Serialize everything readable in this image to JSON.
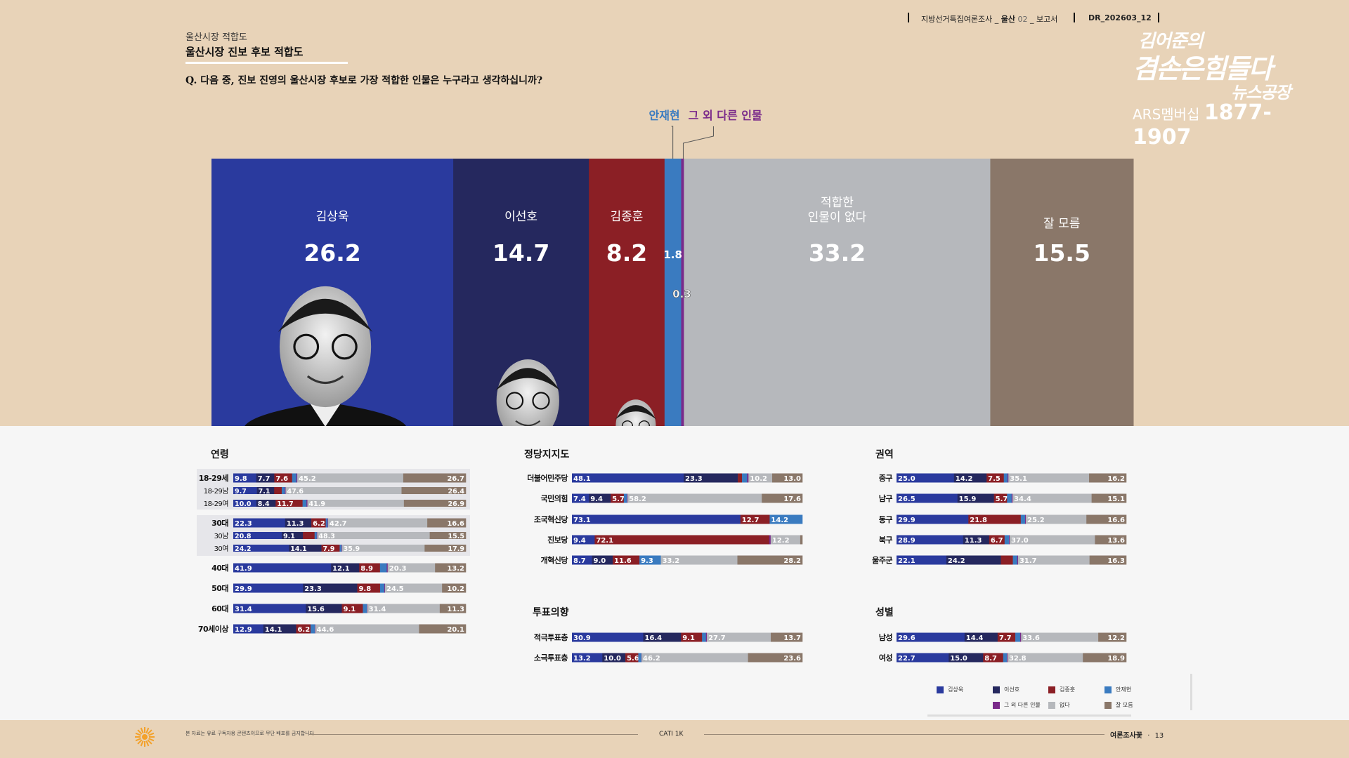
{
  "header": {
    "doc_title": "지방선거특집여론조사",
    "region": "울산",
    "issue_no": "02",
    "doc_type": "보고서",
    "doc_code": "DR_202603_12"
  },
  "brand": {
    "line1": "김어준의",
    "line2": "겸손은힘들다",
    "line3": "뉴스공장",
    "membership_label": "ARS멤버십",
    "membership_number": "1877-1907"
  },
  "section": {
    "subtitle": "울산시장 적합도",
    "title": "울산시장 진보 후보 적합도",
    "question": "Q. 다음 중, 진보 진영의 울산시장 후보로 가장 적합한 인물은 누구라고 생각하십니까?"
  },
  "callouts": {
    "ahn": "안재현",
    "other": "그 외 다른 인물"
  },
  "colors": {
    "kim_sangwook": "#2a3a9e",
    "lee_seonho": "#25285e",
    "kim_jonghoon": "#8b1f25",
    "ahn_jaehyun": "#3a7bc0",
    "other_person": "#7a2a8a",
    "none": "#b6b8bc",
    "dont_know": "#8a7769"
  },
  "chart_data": [
    {
      "type": "bar",
      "stacked": true,
      "orientation": "horizontal",
      "series": [
        {
          "key": "kim_sangwook",
          "name": "김상욱",
          "values": [
            26.2
          ]
        },
        {
          "key": "lee_seonho",
          "name": "이선호",
          "values": [
            14.7
          ]
        },
        {
          "key": "kim_jonghoon",
          "name": "김종훈",
          "values": [
            8.2
          ]
        },
        {
          "key": "ahn_jaehyun",
          "name": "안재현",
          "values": [
            1.8
          ]
        },
        {
          "key": "other_person",
          "name": "그 외 다른 인물",
          "values": [
            0.3
          ]
        },
        {
          "key": "none",
          "name": "적합한 인물이 없다",
          "values": [
            33.2
          ]
        },
        {
          "key": "dont_know",
          "name": "잘 모름",
          "values": [
            15.5
          ]
        }
      ]
    },
    {
      "type": "bar",
      "stacked": true,
      "title": "연령",
      "series_order": [
        "kim_sangwook",
        "lee_seonho",
        "kim_jonghoon",
        "ahn_jaehyun",
        "other_person",
        "none",
        "dont_know"
      ],
      "rows": [
        {
          "label": "18-29세",
          "values": [
            9.8,
            7.7,
            7.6,
            1.8,
            0.4,
            45.2,
            26.7
          ]
        },
        {
          "label": "18-29남",
          "values": [
            9.7,
            7.1,
            3.1,
            1.3,
            0.3,
            47.6,
            26.4
          ]
        },
        {
          "label": "18-29여",
          "values": [
            10.0,
            8.4,
            11.7,
            1.7,
            0.4,
            41.9,
            26.9
          ]
        },
        {
          "label": "30대",
          "values": [
            22.3,
            11.3,
            6.2,
            0.8,
            0.2,
            42.7,
            16.6
          ]
        },
        {
          "label": "30남",
          "values": [
            20.8,
            9.1,
            5.0,
            0.9,
            0.2,
            48.3,
            15.5
          ]
        },
        {
          "label": "30여",
          "values": [
            24.2,
            14.1,
            7.9,
            0.8,
            0.2,
            35.9,
            17.9
          ]
        },
        {
          "label": "40대",
          "values": [
            41.9,
            12.1,
            8.9,
            2.9,
            0.4,
            20.3,
            13.2
          ]
        },
        {
          "label": "50대",
          "values": [
            29.9,
            23.3,
            9.8,
            1.8,
            0.3,
            24.5,
            10.2
          ]
        },
        {
          "label": "60대",
          "values": [
            31.4,
            15.6,
            9.1,
            1.7,
            0.2,
            31.4,
            11.3
          ]
        },
        {
          "label": "70세이상",
          "values": [
            12.9,
            14.1,
            6.2,
            1.8,
            0.2,
            44.6,
            20.1
          ]
        }
      ],
      "labels_shown": [
        [
          "9.8",
          "7.7",
          "7.6",
          "",
          "",
          "45.2",
          "26.7"
        ],
        [
          "9.7",
          "7.1",
          "",
          "",
          "",
          "47.6",
          "26.4"
        ],
        [
          "10.0",
          "8.4",
          "11.7",
          "",
          "",
          "41.9",
          "26.9"
        ],
        [
          "22.3",
          "11.3",
          "6.2",
          "",
          "",
          "42.7",
          "16.6"
        ],
        [
          "20.8",
          "9.1",
          "",
          "",
          "",
          "48.3",
          "15.5"
        ],
        [
          "24.2",
          "14.1",
          "7.9",
          "",
          "",
          "35.9",
          "17.9"
        ],
        [
          "41.9",
          "12.1",
          "8.9",
          "",
          "",
          "20.3",
          "13.2"
        ],
        [
          "29.9",
          "23.3",
          "9.8",
          "",
          "",
          "24.5",
          "10.2"
        ],
        [
          "31.4",
          "15.6",
          "9.1",
          "",
          "",
          "31.4",
          "11.3"
        ],
        [
          "12.9",
          "14.1",
          "6.2",
          "",
          "",
          "44.6",
          "20.1"
        ]
      ],
      "groups": [
        [
          0,
          1,
          2
        ],
        [
          3,
          4,
          5
        ]
      ]
    },
    {
      "type": "bar",
      "stacked": true,
      "title": "정당지지도",
      "series_order": [
        "kim_sangwook",
        "lee_seonho",
        "kim_jonghoon",
        "ahn_jaehyun",
        "other_person",
        "none",
        "dont_know"
      ],
      "rows": [
        {
          "label": "더불어민주당",
          "values": [
            48.1,
            23.3,
            1.8,
            2.2,
            0.6,
            10.2,
            13.0
          ]
        },
        {
          "label": "국민의힘",
          "values": [
            7.4,
            9.4,
            5.7,
            1.3,
            0.3,
            58.2,
            17.6
          ]
        },
        {
          "label": "조국혁신당",
          "values": [
            73.1,
            0.0,
            12.7,
            14.2,
            0.0,
            0.0,
            0.0
          ]
        },
        {
          "label": "진보당",
          "values": [
            9.4,
            0.0,
            72.1,
            0.0,
            0.6,
            12.2,
            0.9
          ]
        },
        {
          "label": "개혁신당",
          "values": [
            8.7,
            9.0,
            11.6,
            9.3,
            0.0,
            33.2,
            28.2
          ]
        }
      ],
      "labels_shown": [
        [
          "48.1",
          "23.3",
          "",
          "",
          "",
          "10.2",
          "13.0"
        ],
        [
          "7.4",
          "9.4",
          "5.7",
          "",
          "",
          "58.2",
          "17.6"
        ],
        [
          "73.1",
          "",
          "12.7",
          "14.2",
          "",
          "",
          ""
        ],
        [
          "9.4",
          "",
          "72.1",
          "",
          "",
          "12.2",
          ""
        ],
        [
          "8.7",
          "9.0",
          "11.6",
          "9.3",
          "",
          "33.2",
          "28.2"
        ]
      ]
    },
    {
      "type": "bar",
      "stacked": true,
      "title": "투표의향",
      "series_order": [
        "kim_sangwook",
        "lee_seonho",
        "kim_jonghoon",
        "ahn_jaehyun",
        "other_person",
        "none",
        "dont_know"
      ],
      "rows": [
        {
          "label": "적극투표층",
          "values": [
            30.9,
            16.4,
            9.1,
            1.7,
            0.4,
            27.7,
            13.7
          ]
        },
        {
          "label": "소극투표층",
          "values": [
            13.2,
            10.0,
            5.6,
            1.3,
            0.1,
            46.2,
            23.6
          ]
        }
      ],
      "labels_shown": [
        [
          "30.9",
          "16.4",
          "9.1",
          "",
          "",
          "27.7",
          "13.7"
        ],
        [
          "13.2",
          "10.0",
          "5.6",
          "",
          "",
          "46.2",
          "23.6"
        ]
      ]
    },
    {
      "type": "bar",
      "stacked": true,
      "title": "권역",
      "series_order": [
        "kim_sangwook",
        "lee_seonho",
        "kim_jonghoon",
        "ahn_jaehyun",
        "other_person",
        "none",
        "dont_know"
      ],
      "rows": [
        {
          "label": "중구",
          "values": [
            25.0,
            14.2,
            7.5,
            1.6,
            0.4,
            35.1,
            16.2
          ]
        },
        {
          "label": "남구",
          "values": [
            26.5,
            15.9,
            5.7,
            2.0,
            0.4,
            34.4,
            15.1
          ]
        },
        {
          "label": "동구",
          "values": [
            29.9,
            0.0,
            21.8,
            1.8,
            0.3,
            25.2,
            16.6
          ]
        },
        {
          "label": "북구",
          "values": [
            28.9,
            11.3,
            6.7,
            1.9,
            0.3,
            37.0,
            13.6
          ]
        },
        {
          "label": "울주군",
          "values": [
            22.1,
            24.2,
            5.3,
            1.9,
            0.4,
            31.7,
            16.3
          ]
        }
      ],
      "labels_shown": [
        [
          "25.0",
          "14.2",
          "7.5",
          "",
          "",
          "35.1",
          "16.2"
        ],
        [
          "26.5",
          "15.9",
          "5.7",
          "",
          "",
          "34.4",
          "15.1"
        ],
        [
          "29.9",
          "",
          "21.8",
          "",
          "",
          "25.2",
          "16.6"
        ],
        [
          "28.9",
          "11.3",
          "6.7",
          "",
          "",
          "37.0",
          "13.6"
        ],
        [
          "22.1",
          "24.2",
          "",
          "",
          "",
          "31.7",
          "16.3"
        ]
      ]
    },
    {
      "type": "bar",
      "stacked": true,
      "title": "성별",
      "series_order": [
        "kim_sangwook",
        "lee_seonho",
        "kim_jonghoon",
        "ahn_jaehyun",
        "other_person",
        "none",
        "dont_know"
      ],
      "rows": [
        {
          "label": "남성",
          "values": [
            29.6,
            14.4,
            7.7,
            2.1,
            0.4,
            33.6,
            12.2
          ]
        },
        {
          "label": "여성",
          "values": [
            22.7,
            15.0,
            8.7,
            1.6,
            0.3,
            32.8,
            18.9
          ]
        }
      ],
      "labels_shown": [
        [
          "29.6",
          "14.4",
          "7.7",
          "",
          "",
          "33.6",
          "12.2"
        ],
        [
          "22.7",
          "15.0",
          "8.7",
          "",
          "",
          "32.8",
          "18.9"
        ]
      ]
    }
  ],
  "legend": [
    {
      "key": "kim_sangwook",
      "label": "김상욱"
    },
    {
      "key": "lee_seonho",
      "label": "이선호"
    },
    {
      "key": "kim_jonghoon",
      "label": "김종훈"
    },
    {
      "key": "ahn_jaehyun",
      "label": "안재현"
    },
    {
      "key": "other_person",
      "label": "그 외 다른 인물"
    },
    {
      "key": "none",
      "label": "없다"
    },
    {
      "key": "dont_know",
      "label": "잘 모름"
    }
  ],
  "footer": {
    "notice": "본 자료는 유료 구독자용 콘텐츠이므로 무단 배포를 금지합니다",
    "method": "CATI 1K",
    "publication": "여론조사꽃",
    "page": "13"
  }
}
